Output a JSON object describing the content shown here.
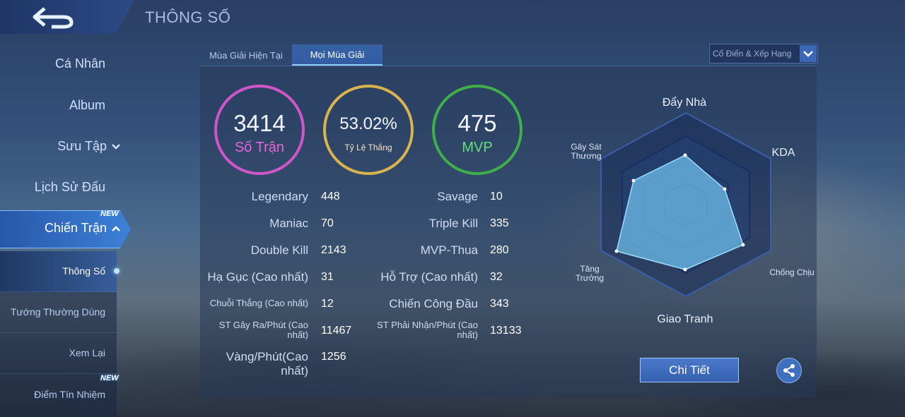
{
  "header": {
    "title": "THÔNG SỐ"
  },
  "sidebar": {
    "items": [
      "Cá Nhân",
      "Album",
      "Sưu Tập",
      "Lịch Sử Đấu"
    ],
    "active": {
      "label": "Chiến Trận",
      "badge": "NEW"
    },
    "sub_items": [
      {
        "label": "Thông Số"
      },
      {
        "label": "Tướng Thường Dùng"
      },
      {
        "label": "Xem Lại"
      },
      {
        "label": "Điểm Tín Nhiệm",
        "badge": "NEW"
      }
    ]
  },
  "tabs": [
    "Mùa Giải Hiện Tại",
    "Mọi Mùa Giải"
  ],
  "filter": {
    "selected": "Cổ Điển & Xếp Hạng"
  },
  "summary": [
    {
      "value": "3414",
      "label": "Số Trận",
      "color": "#d056c8",
      "label_color": "#e765d9"
    },
    {
      "value": "53.02%",
      "label": "Tỷ Lệ Thắng",
      "color": "#d9b34d",
      "label_color": "#f2e6c0"
    },
    {
      "value": "475",
      "label": "MVP",
      "color": "#3fae4b",
      "label_color": "#64e07a"
    }
  ],
  "stats_left": [
    {
      "label": "Legendary",
      "value": "448"
    },
    {
      "label": "Maniac",
      "value": "70"
    },
    {
      "label": "Double Kill",
      "value": "2143"
    },
    {
      "label": "Hạ Gục (Cao nhất)",
      "value": "31"
    },
    {
      "label": "Chuỗi Thắng (Cao nhất)",
      "value": "12"
    },
    {
      "label": "ST Gây Ra/Phút (Cao nhất)",
      "value": "11467"
    },
    {
      "label": "Vàng/Phút(Cao nhất)",
      "value": "1256"
    }
  ],
  "stats_right": [
    {
      "label": "Savage",
      "value": "10"
    },
    {
      "label": "Triple Kill",
      "value": "335"
    },
    {
      "label": "MVP-Thua",
      "value": "280"
    },
    {
      "label": "Hỗ Trợ (Cao nhất)",
      "value": "32"
    },
    {
      "label": "Chiến Công Đầu",
      "value": "343"
    },
    {
      "label": "ST Phải Nhận/Phút (Cao nhất)",
      "value": "13133"
    }
  ],
  "radar": {
    "labels": [
      "Đẩy Nhà",
      "KDA",
      "Chống Chịu",
      "Giao Tranh",
      "Tăng Trưởng",
      "Gây Sát Thương"
    ]
  },
  "actions": {
    "detail": "Chi Tiết"
  },
  "icons": {
    "back": "back-arrow-icon",
    "share": "share-icon",
    "dropdown": "chevron-down-icon"
  }
}
